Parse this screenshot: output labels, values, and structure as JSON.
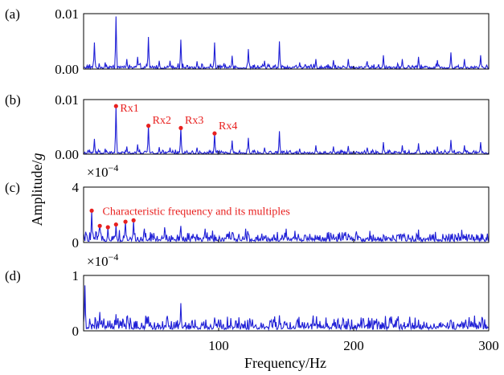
{
  "figure": {
    "ylabel_main": "Amplitude/",
    "ylabel_italic": "g",
    "xlabel": "Frequency/Hz",
    "xticks": [
      "100",
      "200",
      "300"
    ],
    "line_color": "#1f1fd6",
    "marker_color": "#e8201f"
  },
  "chart_data": [
    {
      "type": "line",
      "panel": "(a)",
      "xlim": [
        0,
        300
      ],
      "ylim": [
        0,
        0.01
      ],
      "yticks": [
        "0.01",
        "0.00"
      ],
      "exponent": "",
      "peaks": [
        {
          "x": 8,
          "y": 0.0048
        },
        {
          "x": 16,
          "y": 0.0012
        },
        {
          "x": 24,
          "y": 0.0095
        },
        {
          "x": 32,
          "y": 0.0018
        },
        {
          "x": 40,
          "y": 0.0022
        },
        {
          "x": 48,
          "y": 0.0058
        },
        {
          "x": 56,
          "y": 0.0015
        },
        {
          "x": 64,
          "y": 0.0015
        },
        {
          "x": 72,
          "y": 0.0053
        },
        {
          "x": 84,
          "y": 0.0014
        },
        {
          "x": 97,
          "y": 0.0048
        },
        {
          "x": 110,
          "y": 0.0024
        },
        {
          "x": 122,
          "y": 0.0036
        },
        {
          "x": 134,
          "y": 0.0015
        },
        {
          "x": 145,
          "y": 0.005
        },
        {
          "x": 160,
          "y": 0.0012
        },
        {
          "x": 172,
          "y": 0.0018
        },
        {
          "x": 185,
          "y": 0.0016
        },
        {
          "x": 196,
          "y": 0.0018
        },
        {
          "x": 210,
          "y": 0.0014
        },
        {
          "x": 222,
          "y": 0.0025
        },
        {
          "x": 236,
          "y": 0.0018
        },
        {
          "x": 248,
          "y": 0.0022
        },
        {
          "x": 262,
          "y": 0.0016
        },
        {
          "x": 272,
          "y": 0.003
        },
        {
          "x": 282,
          "y": 0.0018
        },
        {
          "x": 294,
          "y": 0.0025
        }
      ],
      "noise_level": 0.0006,
      "markers": [],
      "annotations": []
    },
    {
      "type": "line",
      "panel": "(b)",
      "xlim": [
        0,
        300
      ],
      "ylim": [
        0,
        0.01
      ],
      "yticks": [
        "0.01",
        "0.00"
      ],
      "exponent": "",
      "peaks": [
        {
          "x": 8,
          "y": 0.0028
        },
        {
          "x": 16,
          "y": 0.001
        },
        {
          "x": 24,
          "y": 0.0088
        },
        {
          "x": 32,
          "y": 0.0014
        },
        {
          "x": 40,
          "y": 0.0018
        },
        {
          "x": 48,
          "y": 0.0052
        },
        {
          "x": 56,
          "y": 0.0013
        },
        {
          "x": 64,
          "y": 0.0012
        },
        {
          "x": 72,
          "y": 0.0048
        },
        {
          "x": 84,
          "y": 0.0012
        },
        {
          "x": 97,
          "y": 0.0038
        },
        {
          "x": 110,
          "y": 0.0025
        },
        {
          "x": 122,
          "y": 0.003
        },
        {
          "x": 134,
          "y": 0.0012
        },
        {
          "x": 145,
          "y": 0.0042
        },
        {
          "x": 160,
          "y": 0.001
        },
        {
          "x": 172,
          "y": 0.0016
        },
        {
          "x": 185,
          "y": 0.0014
        },
        {
          "x": 196,
          "y": 0.0015
        },
        {
          "x": 210,
          "y": 0.0012
        },
        {
          "x": 222,
          "y": 0.0022
        },
        {
          "x": 236,
          "y": 0.0016
        },
        {
          "x": 248,
          "y": 0.002
        },
        {
          "x": 262,
          "y": 0.0014
        },
        {
          "x": 272,
          "y": 0.0026
        },
        {
          "x": 282,
          "y": 0.0016
        },
        {
          "x": 294,
          "y": 0.0022
        }
      ],
      "noise_level": 0.0005,
      "markers": [
        {
          "x": 24,
          "y": 0.0088
        },
        {
          "x": 48,
          "y": 0.0052
        },
        {
          "x": 72,
          "y": 0.0048
        },
        {
          "x": 97,
          "y": 0.0038
        }
      ],
      "annotations": [
        {
          "text": "Rx1",
          "x": 27,
          "y": 0.0085
        },
        {
          "text": "Rx2",
          "x": 51,
          "y": 0.0063
        },
        {
          "text": "Rx3",
          "x": 75,
          "y": 0.0063
        },
        {
          "text": "Rx4",
          "x": 100,
          "y": 0.0053
        }
      ]
    },
    {
      "type": "line",
      "panel": "(c)",
      "xlim": [
        0,
        300
      ],
      "ylim": [
        0,
        4
      ],
      "yticks": [
        "4",
        "0"
      ],
      "exponent": "×10",
      "exponent_power": "−4",
      "peaks": [
        {
          "x": 6,
          "y": 2.3
        },
        {
          "x": 12,
          "y": 1.2
        },
        {
          "x": 18,
          "y": 1.1
        },
        {
          "x": 24,
          "y": 1.3
        },
        {
          "x": 31,
          "y": 1.5
        },
        {
          "x": 37,
          "y": 1.6
        },
        {
          "x": 45,
          "y": 1.0
        },
        {
          "x": 60,
          "y": 1.1
        },
        {
          "x": 72,
          "y": 1.2
        },
        {
          "x": 90,
          "y": 1.0
        },
        {
          "x": 120,
          "y": 1.0
        },
        {
          "x": 150,
          "y": 1.0
        }
      ],
      "noise_level": 0.55,
      "markers": [
        {
          "x": 6,
          "y": 2.3
        },
        {
          "x": 12,
          "y": 1.2
        },
        {
          "x": 18,
          "y": 1.1
        },
        {
          "x": 24,
          "y": 1.3
        },
        {
          "x": 31,
          "y": 1.5
        },
        {
          "x": 37,
          "y": 1.6
        }
      ],
      "annotations": [
        {
          "text": "Characteristic frequency and its multiples",
          "x": 14,
          "y": 2.3
        }
      ]
    },
    {
      "type": "line",
      "panel": "(d)",
      "xlim": [
        0,
        300
      ],
      "ylim": [
        0,
        1
      ],
      "yticks": [
        "1",
        "0"
      ],
      "exponent": "×10",
      "exponent_power": "−4",
      "peaks": [
        {
          "x": 1,
          "y": 0.82
        },
        {
          "x": 12,
          "y": 0.34
        },
        {
          "x": 24,
          "y": 0.3
        },
        {
          "x": 48,
          "y": 0.24
        },
        {
          "x": 72,
          "y": 0.5
        },
        {
          "x": 97,
          "y": 0.24
        },
        {
          "x": 145,
          "y": 0.28
        },
        {
          "x": 196,
          "y": 0.22
        },
        {
          "x": 248,
          "y": 0.2
        }
      ],
      "noise_level": 0.17,
      "markers": [],
      "annotations": []
    }
  ]
}
